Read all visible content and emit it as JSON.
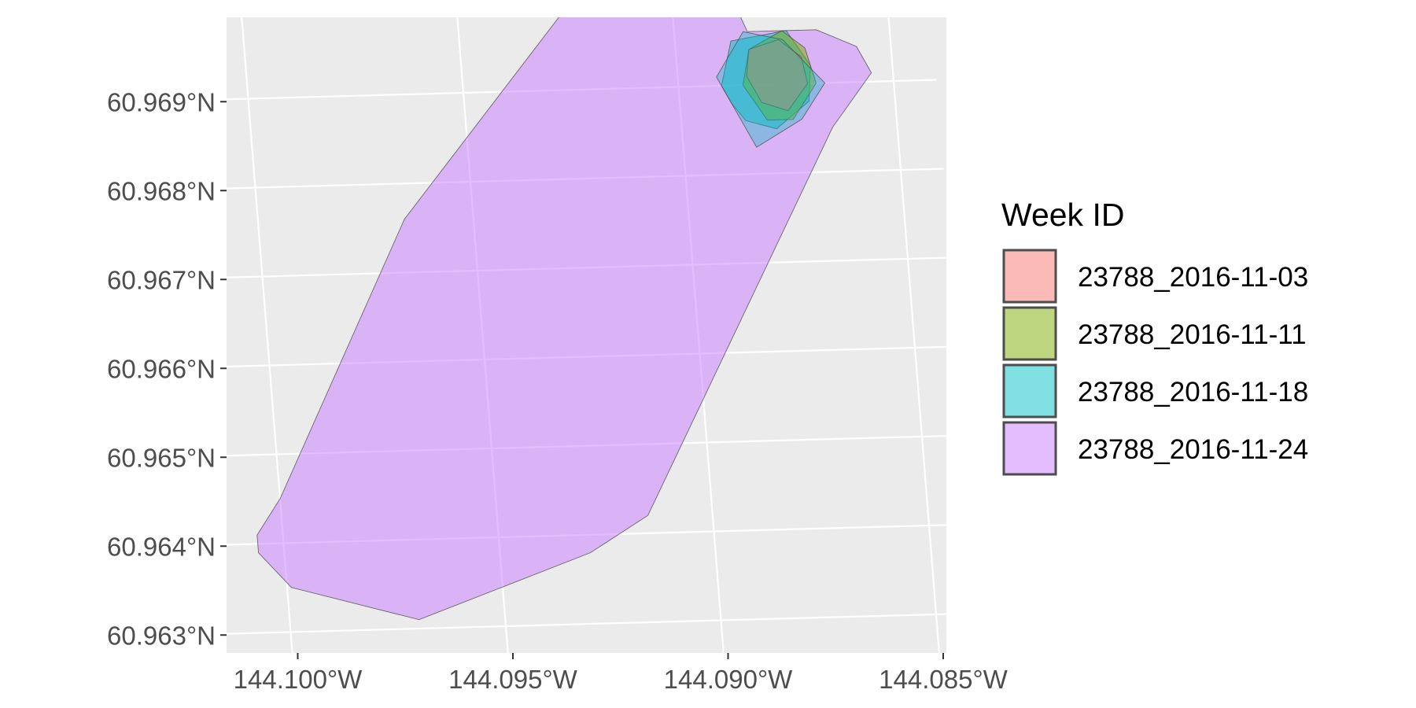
{
  "chart_data": {
    "type": "polygon-map",
    "title": "",
    "xlabel": "",
    "ylabel": "",
    "panel_background": "#ebebeb",
    "grid": true,
    "legend_position": "right",
    "fill_opacity": 0.5,
    "x_ticks": [
      {
        "value": -144.1,
        "label": "144.100°W"
      },
      {
        "value": -144.095,
        "label": "144.095°W"
      },
      {
        "value": -144.09,
        "label": "144.090°W"
      },
      {
        "value": -144.085,
        "label": "144.085°W"
      }
    ],
    "y_ticks": [
      {
        "value": 60.963,
        "label": "60.963°N"
      },
      {
        "value": 60.964,
        "label": "60.964°N"
      },
      {
        "value": 60.965,
        "label": "60.965°N"
      },
      {
        "value": 60.966,
        "label": "60.966°N"
      },
      {
        "value": 60.967,
        "label": "60.967°N"
      },
      {
        "value": 60.968,
        "label": "60.968°N"
      },
      {
        "value": 60.969,
        "label": "60.969°N"
      }
    ],
    "legend": {
      "title": "Week ID",
      "entries": [
        {
          "label": "23788_2016-11-03",
          "color": "#F8766D"
        },
        {
          "label": "23788_2016-11-11",
          "color": "#7CAE00"
        },
        {
          "label": "23788_2016-11-18",
          "color": "#00BFC4"
        },
        {
          "label": "23788_2016-11-24",
          "color": "#C77CFF"
        }
      ]
    },
    "series": [
      {
        "name": "23788_2016-11-24",
        "color": "#C77CFF",
        "polygon": [
          [
            -144.0883,
            60.9696
          ],
          [
            -144.0867,
            60.9696
          ],
          [
            -144.0858,
            60.9694
          ],
          [
            -144.0855,
            60.9691
          ],
          [
            -144.0865,
            60.9685
          ],
          [
            -144.0915,
            60.9642
          ],
          [
            -144.0929,
            60.9638
          ],
          [
            -144.097,
            60.9631
          ],
          [
            -144.0999,
            60.9635
          ],
          [
            -144.1006,
            60.9639
          ],
          [
            -144.1006,
            60.9641
          ],
          [
            -144.1,
            60.9645
          ],
          [
            -144.0966,
            60.9676
          ],
          [
            -144.0925,
            60.9699
          ],
          [
            -144.0895,
            60.9711
          ]
        ]
      },
      {
        "name": "23788_2016-11-18",
        "color": "#00BFC4",
        "polygon": [
          [
            -144.0888,
            60.9688
          ],
          [
            -144.089,
            60.969
          ],
          [
            -144.0887,
            60.9695
          ],
          [
            -144.0874,
            60.9696
          ],
          [
            -144.0869,
            60.9692
          ],
          [
            -144.087,
            60.9688
          ],
          [
            -144.0878,
            60.9685
          ],
          [
            -144.0885,
            60.9686
          ]
        ]
      },
      {
        "name": "23788_2016-11-11",
        "color": "#7CAE00",
        "polygon": [
          [
            -144.0885,
            60.969
          ],
          [
            -144.0883,
            60.9694
          ],
          [
            -144.0875,
            60.9696
          ],
          [
            -144.087,
            60.9694
          ],
          [
            -144.0868,
            60.969
          ],
          [
            -144.0874,
            60.9686
          ],
          [
            -144.088,
            60.9686
          ]
        ]
      },
      {
        "name": "23788_2016-11-03",
        "color": "#F8766D",
        "polygon": [
          [
            -144.0884,
            60.9691
          ],
          [
            -144.0883,
            60.9694
          ],
          [
            -144.0876,
            60.9695
          ],
          [
            -144.0871,
            60.9693
          ],
          [
            -144.087,
            60.969
          ],
          [
            -144.0875,
            60.9687
          ],
          [
            -144.0881,
            60.9688
          ]
        ]
      },
      {
        "name": "23788_2016-11-18",
        "color": "#00BFC4",
        "opacity": 0.35,
        "polygon": [
          [
            -144.0891,
            60.9691
          ],
          [
            -144.0884,
            60.9696
          ],
          [
            -144.0875,
            60.9695
          ],
          [
            -144.0866,
            60.969
          ],
          [
            -144.0872,
            60.9686
          ],
          [
            -144.0883,
            60.9683
          ]
        ]
      }
    ]
  }
}
